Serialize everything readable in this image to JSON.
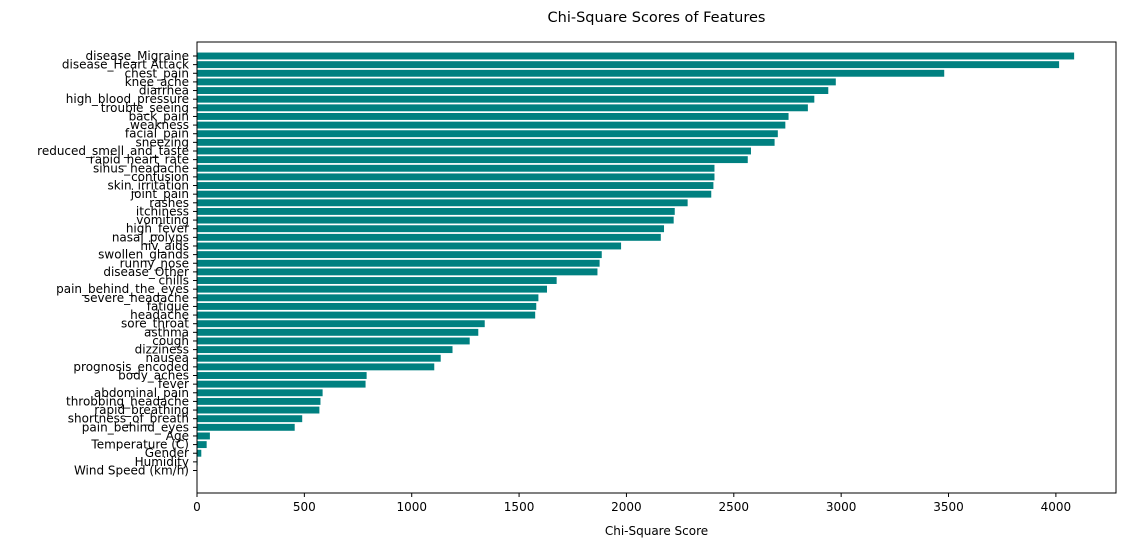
{
  "chart_data": {
    "type": "bar",
    "orientation": "horizontal",
    "title": "Chi-Square Scores of Features",
    "xlabel": "Chi-Square Score",
    "ylabel": "",
    "xlim": [
      0,
      4280
    ],
    "xticks": [
      0,
      500,
      1000,
      1500,
      2000,
      2500,
      3000,
      3500,
      4000
    ],
    "grid": false,
    "legend": "none",
    "bar_color": "#008080",
    "categories": [
      "disease_Migraine",
      "disease_Heart Attack",
      "chest_pain",
      "knee_ache",
      "diarrhea",
      "high_blood_pressure",
      "trouble_seeing",
      "back_pain",
      "weakness",
      "facial_pain",
      "sneezing",
      "reduced_smell_and_taste",
      "rapid_heart_rate",
      "sinus_headache",
      "confusion",
      "skin_irritation",
      "joint_pain",
      "rashes",
      "itchiness",
      "vomiting",
      "high_fever",
      "nasal_polyps",
      "hiv_aids",
      "swollen_glands",
      "runny_nose",
      "disease_Other",
      "chills",
      "pain_behind_the_eyes",
      "severe_headache",
      "fatigue",
      "headache",
      "sore_throat",
      "asthma",
      "cough",
      "dizziness",
      "nausea",
      "prognosis_encoded",
      "body_aches",
      "fever",
      "abdominal_pain",
      "throbbing_headache",
      "rapid_breathing",
      "shortness_of_breath",
      "pain_behind_eyes",
      "Age",
      "Temperature (C)",
      "Gender",
      "Humidity",
      "Wind Speed (km/h)"
    ],
    "values": [
      4085,
      4015,
      3480,
      2975,
      2940,
      2875,
      2845,
      2755,
      2740,
      2705,
      2690,
      2580,
      2565,
      2410,
      2410,
      2405,
      2395,
      2285,
      2225,
      2220,
      2175,
      2160,
      1975,
      1885,
      1875,
      1865,
      1675,
      1630,
      1590,
      1580,
      1575,
      1340,
      1310,
      1270,
      1190,
      1135,
      1105,
      790,
      785,
      585,
      575,
      570,
      490,
      455,
      60,
      45,
      20,
      3,
      1
    ]
  }
}
